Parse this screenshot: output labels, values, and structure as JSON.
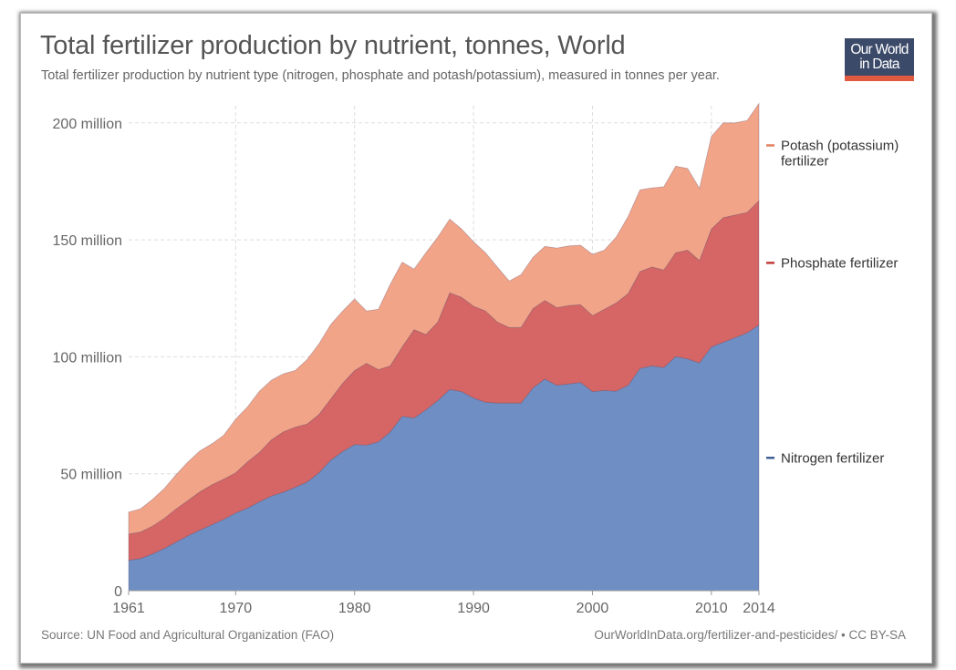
{
  "header": {
    "title": "Total fertilizer production by nutrient, tonnes, World",
    "subtitle": "Total fertilizer production by nutrient type (nitrogen, phosphate and potash/potassium), measured in tonnes per year.",
    "logo_line1": "Our World",
    "logo_line2": "in Data"
  },
  "footer": {
    "source": "Source: UN Food and Agricultural Organization (FAO)",
    "url": "OurWorldInData.org/fertilizer-and-pesticides/ • CC BY-SA"
  },
  "chart_data": {
    "type": "area",
    "stacked": true,
    "title": "Total fertilizer production by nutrient, tonnes, World",
    "xlabel": "",
    "ylabel": "",
    "unit": "million tonnes",
    "xlim": [
      1961,
      2014
    ],
    "ylim": [
      0,
      210
    ],
    "grid": true,
    "legend_placement": "right",
    "x_ticks": [
      "1961",
      "1970",
      "1980",
      "1990",
      "2000",
      "2010",
      "2014"
    ],
    "y_ticks": [
      {
        "value": 0,
        "label": "0"
      },
      {
        "value": 50,
        "label": "50 million"
      },
      {
        "value": 100,
        "label": "100 million"
      },
      {
        "value": 150,
        "label": "150 million"
      },
      {
        "value": 200,
        "label": "200 million"
      }
    ],
    "x": [
      1961,
      1962,
      1963,
      1964,
      1965,
      1966,
      1967,
      1968,
      1969,
      1970,
      1971,
      1972,
      1973,
      1974,
      1975,
      1976,
      1977,
      1978,
      1979,
      1980,
      1981,
      1982,
      1983,
      1984,
      1985,
      1986,
      1987,
      1988,
      1989,
      1990,
      1991,
      1992,
      1993,
      1994,
      1995,
      1996,
      1997,
      1998,
      1999,
      2000,
      2001,
      2002,
      2003,
      2004,
      2005,
      2006,
      2007,
      2008,
      2009,
      2010,
      2011,
      2012,
      2013,
      2014
    ],
    "series": [
      {
        "name": "Nitrogen fertilizer",
        "label_lines": [
          "Nitrogen fertilizer"
        ],
        "color": "#6f8fc4",
        "values": [
          13.0,
          13.7,
          15.7,
          18.1,
          20.8,
          23.5,
          25.9,
          28.2,
          30.5,
          33.2,
          35.3,
          38.0,
          40.5,
          42.1,
          44.2,
          46.4,
          50.4,
          55.8,
          59.5,
          62.5,
          62.2,
          63.6,
          67.9,
          74.6,
          73.8,
          77.3,
          81.3,
          86.0,
          85.1,
          82.4,
          80.6,
          80.2,
          80.2,
          80.2,
          86.7,
          90.5,
          87.8,
          88.4,
          89.0,
          85.1,
          85.6,
          85.3,
          87.8,
          95.0,
          96.1,
          95.4,
          100.1,
          99.1,
          97.4,
          104.2,
          106.2,
          108.2,
          110.2,
          113.6
        ]
      },
      {
        "name": "Phosphate fertilizer",
        "label_lines": [
          "Phosphate fertilizer"
        ],
        "color": "#d66665",
        "values": [
          11.2,
          11.4,
          11.9,
          12.8,
          14.2,
          15.1,
          16.4,
          17.1,
          17.2,
          17.2,
          19.8,
          21.1,
          24.0,
          25.8,
          25.7,
          24.8,
          24.9,
          26.2,
          29.2,
          31.6,
          35.0,
          30.9,
          28.2,
          29.6,
          37.8,
          32.2,
          33.6,
          41.3,
          40.3,
          39.2,
          39.0,
          34.7,
          32.3,
          32.3,
          33.9,
          33.6,
          33.2,
          33.5,
          33.3,
          32.5,
          34.7,
          37.7,
          39.2,
          41.4,
          42.3,
          41.7,
          44.4,
          46.5,
          43.7,
          50.4,
          53.3,
          52.4,
          51.5,
          53.1
        ]
      },
      {
        "name": "Potash (potassium) fertilizer",
        "label_lines": [
          "Potash (potassium)",
          "fertilizer"
        ],
        "color": "#f2a488",
        "values": [
          9.4,
          9.9,
          11.4,
          12.8,
          14.7,
          16.5,
          17.5,
          17.5,
          18.8,
          22.9,
          23.5,
          26.2,
          25.5,
          24.8,
          24.2,
          27.6,
          30.2,
          31.8,
          30.9,
          30.6,
          22.4,
          25.8,
          34.9,
          36.3,
          25.9,
          35.0,
          36.3,
          31.6,
          29.2,
          27.6,
          24.9,
          23.5,
          19.9,
          22.6,
          21.9,
          23.1,
          25.5,
          25.5,
          25.4,
          26.2,
          25.3,
          28.2,
          33.0,
          35.0,
          33.8,
          35.6,
          37.0,
          34.9,
          30.9,
          39.6,
          40.5,
          39.4,
          39.3,
          41.6
        ]
      }
    ]
  }
}
